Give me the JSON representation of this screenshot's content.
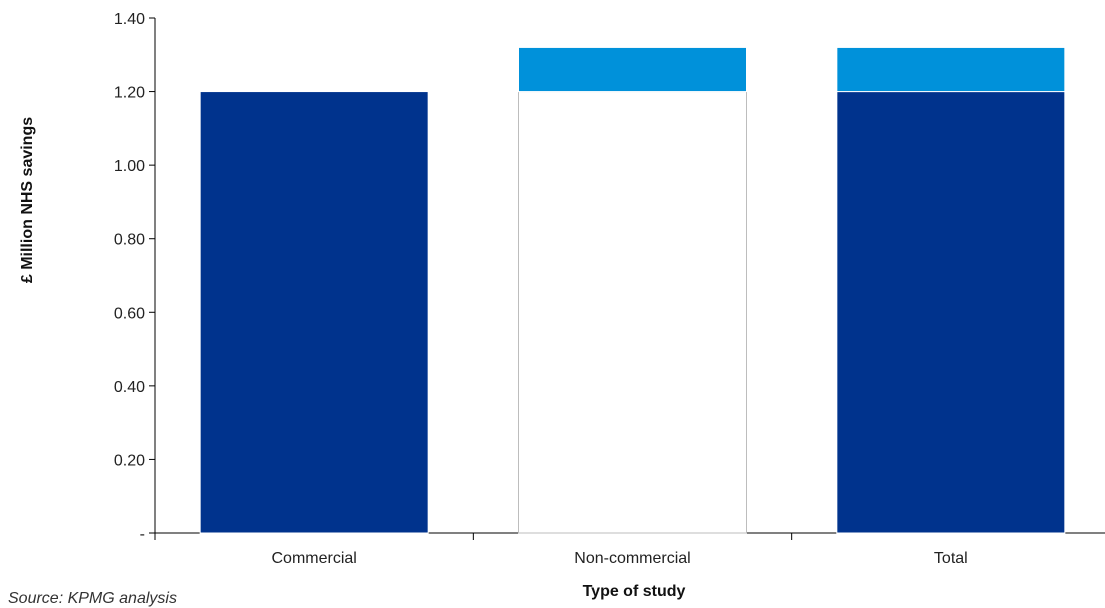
{
  "chart_data": {
    "type": "bar",
    "stacked": true,
    "categories": [
      "Commercial",
      "Non-commercial",
      "Total"
    ],
    "series": [
      {
        "values": [
          1.2,
          1.2,
          1.2
        ],
        "color": "#00338D",
        "hidden": [
          false,
          true,
          false
        ]
      },
      {
        "values": [
          0.0,
          0.12,
          0.12
        ],
        "color": "#0091DA"
      }
    ],
    "y_ticks": [
      {
        "value": 0.0,
        "label": "-"
      },
      {
        "value": 0.2,
        "label": "0.20"
      },
      {
        "value": 0.4,
        "label": "0.40"
      },
      {
        "value": 0.6,
        "label": "0.60"
      },
      {
        "value": 0.8,
        "label": "0.80"
      },
      {
        "value": 1.0,
        "label": "1.00"
      },
      {
        "value": 1.2,
        "label": "1.20"
      },
      {
        "value": 1.4,
        "label": "1.40"
      }
    ],
    "ylim": [
      0,
      1.4
    ],
    "xlabel": "Type of study",
    "ylabel": "£ Million  NHS savings",
    "grid": false,
    "source": "Source: KPMG analysis"
  }
}
